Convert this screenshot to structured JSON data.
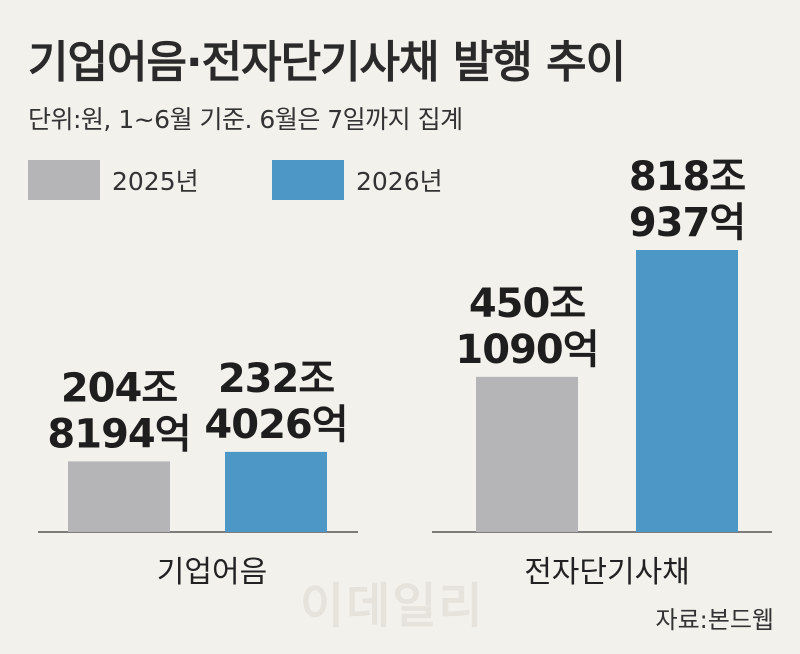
{
  "title": "기업어음·전자단기사채 발행 추이",
  "subtitle": "단위:원, 1~6월 기준. 6월은 7일까지 집계",
  "source": "자료:본드웹",
  "watermark": "이데일리",
  "legend": [
    {
      "label": "2025년",
      "color": "#b5b5b7"
    },
    {
      "label": "2026년",
      "color": "#4d97c6"
    }
  ],
  "chart_data": {
    "type": "bar",
    "categories": [
      "기업어음",
      "전자단기사채"
    ],
    "series": [
      {
        "name": "2025년",
        "color": "#b5b5b7",
        "values": [
          2048194,
          4501090
        ],
        "labels": [
          [
            "204조",
            "8194억"
          ],
          [
            "450조",
            "1090억"
          ]
        ]
      },
      {
        "name": "2026년",
        "color": "#4d97c6",
        "values": [
          2324026,
          8180937
        ],
        "labels": [
          [
            "232조",
            "4026억"
          ],
          [
            "818조",
            "937억"
          ]
        ]
      }
    ],
    "unit": "억원",
    "grid": false,
    "legend_position": "top-left"
  }
}
